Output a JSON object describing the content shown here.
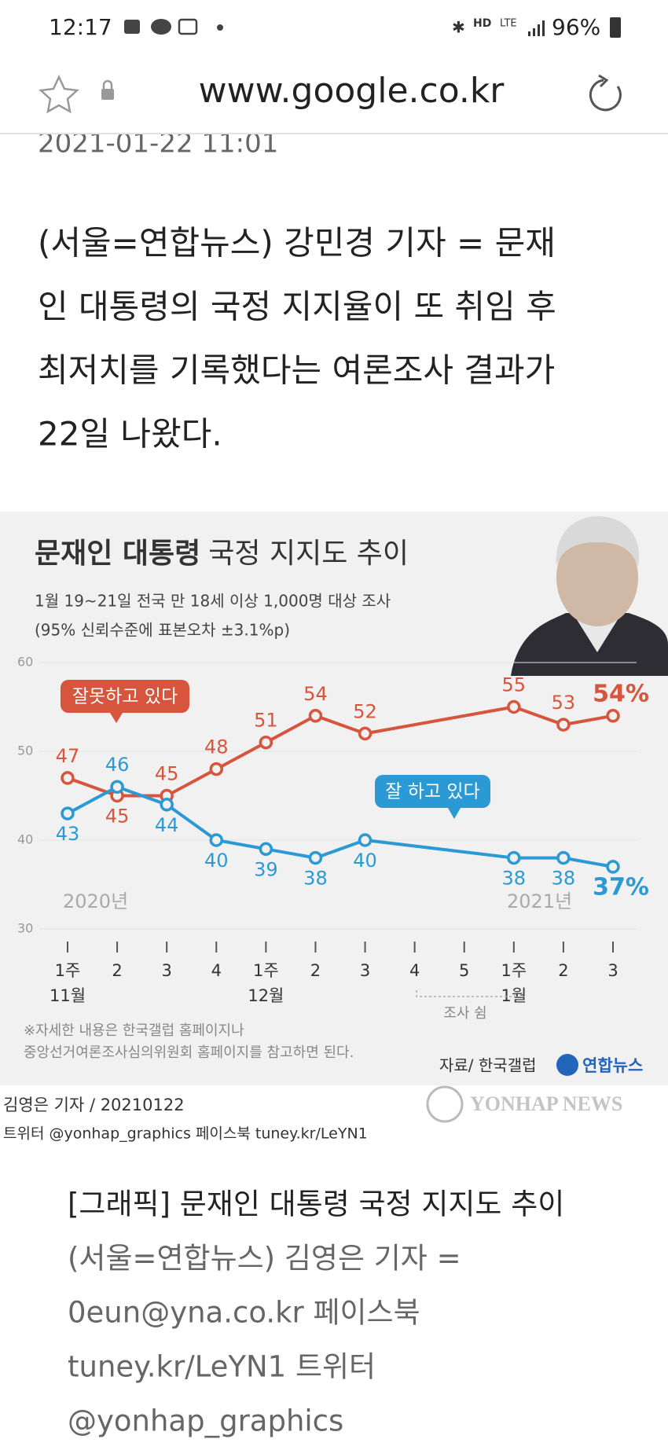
{
  "status_bar": {
    "time": "12:17",
    "network": "HD",
    "lte": "LTE",
    "battery": "96%"
  },
  "browser": {
    "url": "www.google.co.kr"
  },
  "article": {
    "date": "2021-01-22 11:01",
    "paragraph": [
      "(서울=연합뉴스) 강민경 기자 = 문재",
      "인 대통령의 국정 지지율이 또 취임 후",
      "최저치를 기록했다는 여론조사 결과가",
      "22일 나왔다."
    ]
  },
  "chart_data": {
    "type": "line",
    "title": [
      "문재인 대통령",
      "국정 지지도 추이"
    ],
    "subtitle": [
      "1월 19~21일 전국 만 18세 이상 1,000명 대상 조사",
      "(95% 신뢰수준에 표본오차 ±3.1%p)"
    ],
    "categories": [
      "1주",
      "2",
      "3",
      "4",
      "1주",
      "2",
      "3",
      "4",
      "5",
      "1주",
      "2",
      "3"
    ],
    "months": [
      "11월",
      null,
      null,
      null,
      "12월",
      null,
      null,
      null,
      null,
      "1월",
      null,
      null
    ],
    "year_labels": [
      "2020년",
      "2021년"
    ],
    "pause_label": "조사 쉼",
    "series": [
      {
        "name": "잘못하고 있다",
        "color": "#d6553c",
        "values": [
          47,
          45,
          45,
          48,
          51,
          54,
          52,
          null,
          null,
          55,
          53,
          54
        ],
        "value_labels": [
          "47",
          "45",
          "45",
          "48",
          "51",
          "54",
          "52",
          null,
          null,
          "55",
          "53",
          "54%"
        ]
      },
      {
        "name": "잘 하고 있다",
        "color": "#2b9ad4",
        "values": [
          43,
          46,
          44,
          40,
          39,
          38,
          40,
          null,
          null,
          38,
          38,
          37
        ],
        "value_labels": [
          "43",
          "46",
          "44",
          "40",
          "39",
          "38",
          "40",
          null,
          null,
          "38",
          "38",
          "37%"
        ]
      }
    ],
    "ylim": [
      30,
      60
    ],
    "yticks": [
      30,
      40,
      50,
      60
    ],
    "grid": true,
    "notes": [
      "※자세한 내용은 한국갤럽 홈페이지나",
      "중앙선거여론조사심의위원회 홈페이지를 참고하면 된다."
    ],
    "source": "자료/ 한국갤럽",
    "logo": "연합뉴스"
  },
  "credit": {
    "byline": "김영은 기자 / 20210122",
    "social": "트위터 @yonhap_graphics  페이스북 tuney.kr/LeYN1",
    "watermark": "YONHAP NEWS"
  },
  "caption": [
    "[그래픽] 문재인 대통령 국정 지지도 추이",
    "(서울=연합뉴스) 김영은 기자 =",
    "0eun@yna.co.kr 페이스북",
    "tuney.kr/LeYN1 트위터",
    "@yonhap_graphics"
  ]
}
